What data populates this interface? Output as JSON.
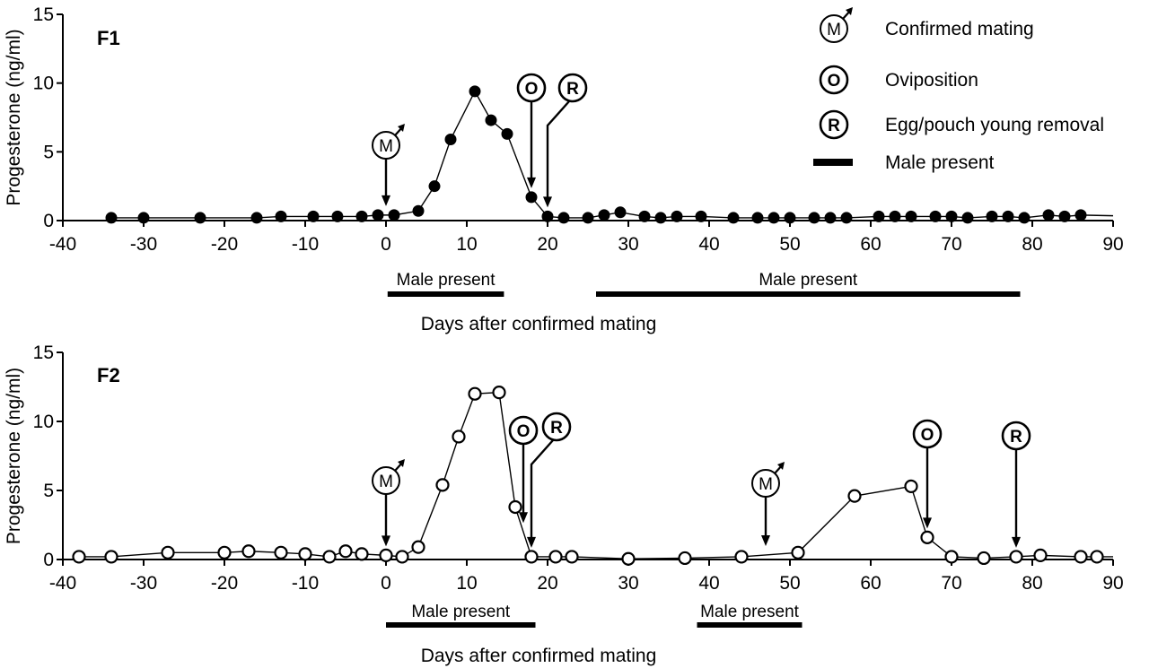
{
  "legend": {
    "items": [
      {
        "symbol": "M",
        "label": "Confirmed mating"
      },
      {
        "symbol": "O",
        "label": "Oviposition"
      },
      {
        "symbol": "R",
        "label": "Egg/pouch young removal"
      },
      {
        "symbol": "bar",
        "label": "Male present"
      }
    ]
  },
  "chart_data": [
    {
      "type": "line",
      "panel_label": "F1",
      "xlabel": "Days after confirmed mating",
      "ylabel": "Progesterone (ng/ml)",
      "xlim": [
        -40,
        90
      ],
      "ylim": [
        0,
        15
      ],
      "xticks": [
        -40,
        -30,
        -20,
        -10,
        0,
        10,
        20,
        30,
        40,
        50,
        60,
        70,
        80,
        90
      ],
      "yticks": [
        0,
        5,
        10,
        15
      ],
      "marker_fill": "filled",
      "series": [
        {
          "x": [
            -34,
            -30,
            -23,
            -16,
            -13,
            -9,
            -6,
            -3,
            -1,
            1,
            4,
            6,
            8,
            11,
            13,
            15,
            18,
            20,
            22,
            25,
            27,
            29,
            32,
            34,
            36,
            39,
            43,
            46,
            48,
            50,
            53,
            55,
            57,
            61,
            63,
            65,
            68,
            70,
            72,
            75,
            77,
            79,
            82,
            84,
            86,
            90
          ],
          "y": [
            0.2,
            0.2,
            0.2,
            0.2,
            0.3,
            0.3,
            0.3,
            0.3,
            0.4,
            0.4,
            0.7,
            2.5,
            5.9,
            9.4,
            7.3,
            6.3,
            1.7,
            0.3,
            0.2,
            0.2,
            0.4,
            0.6,
            0.3,
            0.2,
            0.3,
            0.3,
            0.2,
            0.2,
            0.2,
            0.2,
            0.2,
            0.2,
            0.2,
            0.3,
            0.3,
            0.3,
            0.3,
            0.3,
            0.2,
            0.3,
            0.3,
            0.2,
            0.4,
            0.3,
            0.4,
            0.35
          ],
          "marked": [
            true,
            true,
            true,
            true,
            true,
            true,
            true,
            true,
            true,
            true,
            true,
            true,
            true,
            true,
            true,
            true,
            true,
            true,
            true,
            true,
            true,
            true,
            true,
            true,
            true,
            true,
            true,
            true,
            true,
            true,
            true,
            true,
            true,
            true,
            true,
            true,
            true,
            true,
            true,
            true,
            true,
            true,
            true,
            true,
            true,
            false
          ]
        }
      ],
      "events": [
        {
          "symbol": "M",
          "x": 0
        },
        {
          "symbol": "O",
          "x": 18
        },
        {
          "symbol": "R",
          "x": 20
        }
      ],
      "male_present": [
        {
          "label": "Male present",
          "start": 0.2,
          "end": 14.6
        },
        {
          "label": "Male present",
          "start": 26,
          "end": 78.5
        }
      ]
    },
    {
      "type": "line",
      "panel_label": "F2",
      "xlabel": "Days after confirmed mating",
      "ylabel": "Progesterone (ng/ml)",
      "xlim": [
        -40,
        90
      ],
      "ylim": [
        0,
        15
      ],
      "xticks": [
        -40,
        -30,
        -20,
        -10,
        0,
        10,
        20,
        30,
        40,
        50,
        60,
        70,
        80,
        90
      ],
      "yticks": [
        0,
        5,
        10,
        15
      ],
      "marker_fill": "open",
      "series": [
        {
          "x": [
            -38,
            -34,
            -27,
            -20,
            -17,
            -13,
            -10,
            -7,
            -5,
            -3,
            0,
            2,
            4,
            7,
            9,
            11,
            14,
            16,
            18,
            21,
            23,
            30,
            37,
            44,
            51,
            58,
            65,
            67,
            70,
            74,
            78,
            81,
            86,
            88,
            90
          ],
          "y": [
            0.2,
            0.2,
            0.5,
            0.5,
            0.6,
            0.5,
            0.4,
            0.2,
            0.6,
            0.4,
            0.3,
            0.2,
            0.9,
            5.4,
            8.9,
            12.0,
            12.1,
            3.8,
            0.2,
            0.2,
            0.2,
            0.05,
            0.1,
            0.2,
            0.5,
            4.6,
            5.3,
            1.6,
            0.2,
            0.1,
            0.2,
            0.3,
            0.2,
            0.2,
            0.2
          ],
          "marked": [
            true,
            true,
            true,
            true,
            true,
            true,
            true,
            true,
            true,
            true,
            true,
            true,
            true,
            true,
            true,
            true,
            true,
            true,
            true,
            true,
            true,
            true,
            true,
            true,
            true,
            true,
            true,
            true,
            true,
            true,
            true,
            true,
            true,
            true,
            false
          ]
        }
      ],
      "events": [
        {
          "symbol": "M",
          "x": 0
        },
        {
          "symbol": "O",
          "x": 17
        },
        {
          "symbol": "R",
          "x": 18
        },
        {
          "symbol": "M",
          "x": 47
        },
        {
          "symbol": "O",
          "x": 67
        },
        {
          "symbol": "R",
          "x": 78
        }
      ],
      "male_present": [
        {
          "label": "Male present",
          "start": 0,
          "end": 18.5
        },
        {
          "label": "Male present",
          "start": 38.5,
          "end": 51.5
        }
      ]
    }
  ]
}
